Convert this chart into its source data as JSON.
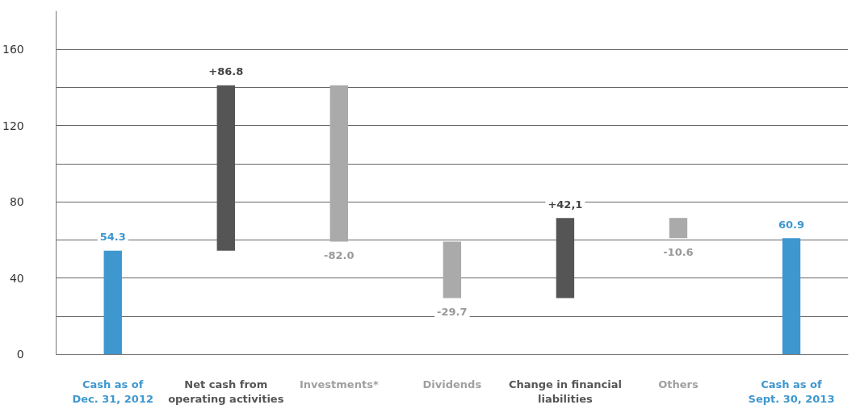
{
  "chart_data": {
    "type": "bar",
    "categories": [
      "Cash as of\nDec. 31, 2012",
      "Net cash from\noperating activities",
      "Investments*",
      "Dividends",
      "Change in financial\nliabilities",
      "Others",
      "Cash as of\nSept. 30, 2013"
    ],
    "values": [
      54.3,
      86.8,
      -82.0,
      -29.7,
      42.1,
      -10.6,
      60.9
    ],
    "base": [
      0,
      54.3,
      141.1,
      59.1,
      29.4,
      71.5,
      0
    ],
    "value_labels": [
      "54.3",
      "+86.8",
      "-82.0",
      "-29.7",
      "+42,1",
      "-10.6",
      "60.9"
    ],
    "colors": [
      "#3e97cf",
      "#555555",
      "#aaaaaa",
      "#aaaaaa",
      "#555555",
      "#aaaaaa",
      "#3e97cf"
    ],
    "ylim": [
      0,
      180
    ],
    "yticks": [
      0,
      {
        "value": 20,
        "label": null
      },
      40,
      {
        "value": 60,
        "label": null
      },
      80,
      {
        "value": 100,
        "label": null
      },
      120,
      {
        "value": 140,
        "label": null
      },
      160
    ],
    "grid": "y"
  }
}
